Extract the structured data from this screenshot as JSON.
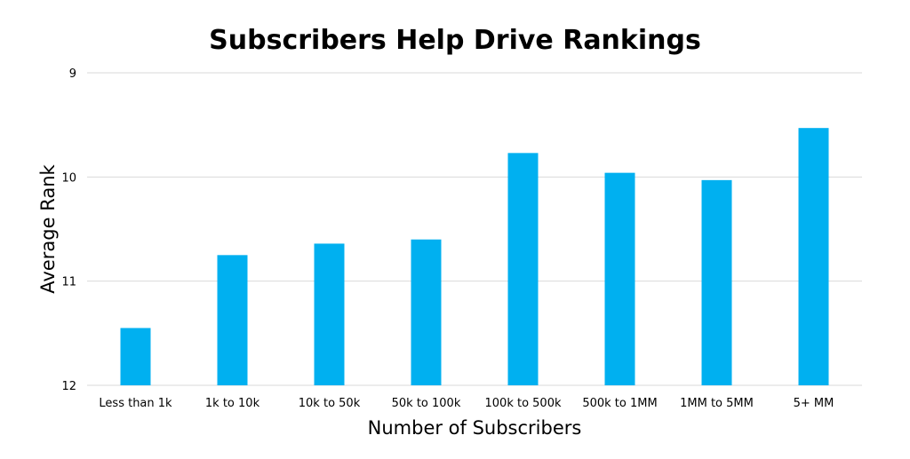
{
  "chart_data": {
    "type": "bar",
    "title": "Subscribers Help Drive Rankings",
    "xlabel": "Number of Subscribers",
    "ylabel": "Average Rank",
    "categories": [
      "Less than 1k",
      "1k to 10k",
      "10k to 50k",
      "50k to 100k",
      "100k to 500k",
      "500k to 1MM",
      "1MM to 5MM",
      "5+ MM"
    ],
    "values": [
      11.45,
      10.75,
      10.64,
      10.6,
      9.77,
      9.96,
      10.03,
      9.53
    ],
    "ylim": [
      9,
      12
    ],
    "y_inverted": true,
    "yticks": [
      "9",
      "10",
      "11",
      "12"
    ],
    "grid": true,
    "bar_color": "#00b0f0",
    "grid_color": "#d9d9d9"
  }
}
